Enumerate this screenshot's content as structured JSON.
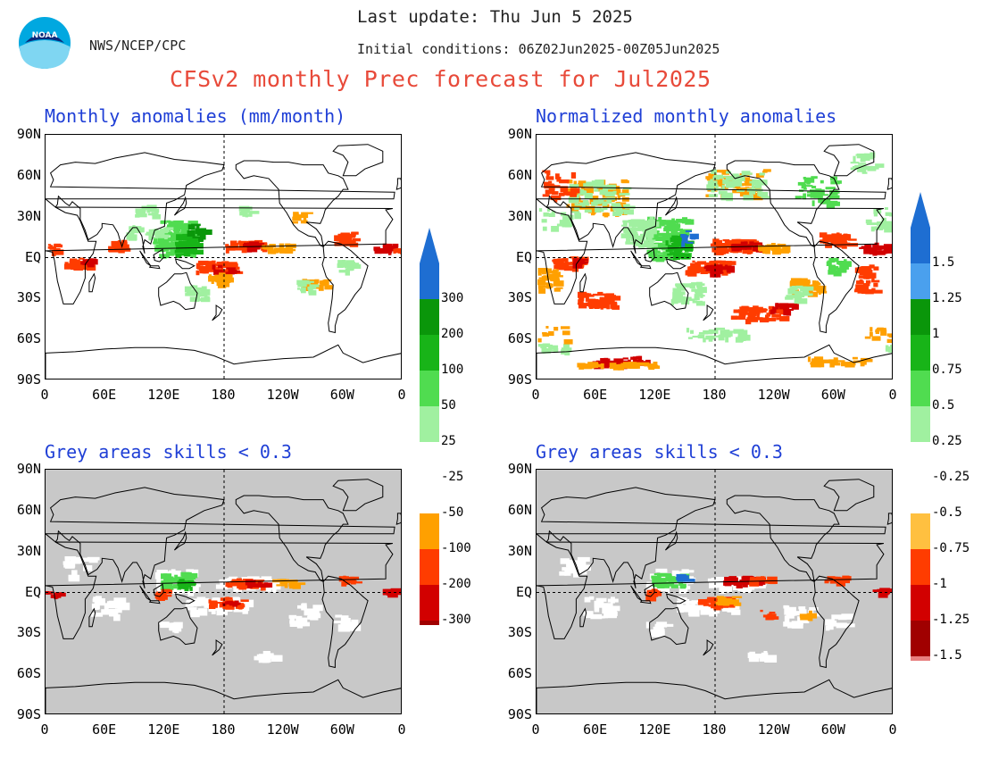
{
  "header": {
    "agency": "NWS/NCEP/CPC",
    "last_update": "Last update: Thu Jun 5 2025",
    "initial_conditions": "Initial conditions: 06Z02Jun2025-00Z05Jun2025",
    "title": "CFSv2 monthly Prec forecast for Jul2025",
    "logo_text": "NOAA"
  },
  "panels": [
    {
      "title": "Monthly anomalies (mm/month)",
      "kind": "anomaly"
    },
    {
      "title": "Normalized monthly anomalies",
      "kind": "normalized"
    },
    {
      "title": "Grey areas skills < 0.3",
      "kind": "anomaly-skill"
    },
    {
      "title": "Grey areas skills < 0.3",
      "kind": "normalized-skill"
    }
  ],
  "lat_labels": [
    "90N",
    "60N",
    "30N",
    "EQ",
    "30S",
    "60S",
    "90S"
  ],
  "lon_labels": [
    "0",
    "60E",
    "120E",
    "180",
    "120W",
    "60W",
    "0"
  ],
  "colorbar_left": {
    "labels": [
      "300",
      "200",
      "100",
      "50",
      "25",
      "-25",
      "-50",
      "-100",
      "-200",
      "-300"
    ]
  },
  "colorbar_right": {
    "labels": [
      "1.5",
      "1.25",
      "1",
      "0.75",
      "0.5",
      "0.25",
      "-0.25",
      "-0.5",
      "-0.75",
      "-1",
      "-1.25",
      "-1.5"
    ]
  },
  "colors": {
    "title_red": "#e84a3a",
    "panel_blue": "#1f3fd6",
    "skill_grey": "#c8c8c8",
    "green_light": "#a0f0a0",
    "green_mid": "#50dc50",
    "green_dark": "#18b418",
    "green_deep": "#0a960a",
    "blue": "#1e6ed2",
    "orange": "#ffa000",
    "orange_red": "#ff3c00",
    "red": "#d20000",
    "dark_red": "#a00000",
    "brown": "#5a3a2a"
  }
}
